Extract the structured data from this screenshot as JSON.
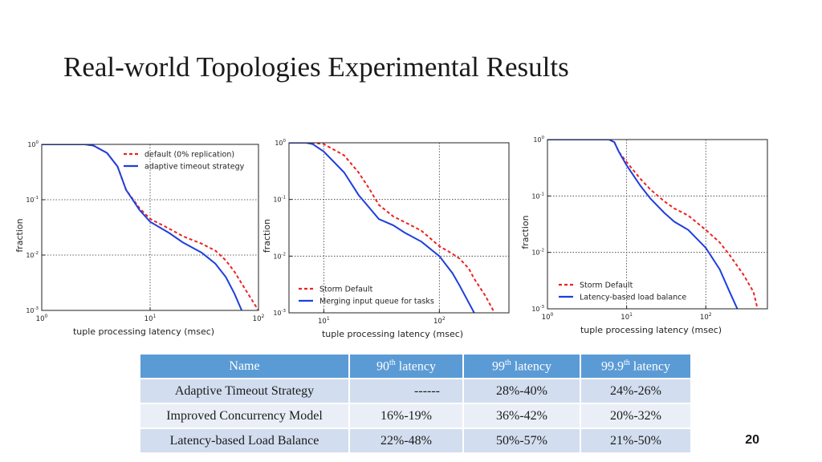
{
  "slide": {
    "title": "Real-world  Topologies Experimental Results",
    "page_number": "20"
  },
  "chart_data": [
    {
      "type": "line",
      "xscale": "log",
      "yscale": "log",
      "xlim": [
        1,
        100
      ],
      "ylim": [
        0.001,
        1
      ],
      "xlabel": "tuple processing latency (msec)",
      "ylabel": "fraction",
      "xticks": [
        {
          "v": 1,
          "m": "10",
          "e": "0"
        },
        {
          "v": 10,
          "m": "10",
          "e": "1"
        },
        {
          "v": 100,
          "m": "10",
          "e": "2"
        }
      ],
      "yticks": [
        {
          "v": 1,
          "m": "10",
          "e": "0"
        },
        {
          "v": 0.1,
          "m": "10",
          "e": "-1"
        },
        {
          "v": 0.01,
          "m": "10",
          "e": "-2"
        },
        {
          "v": 0.001,
          "m": "10",
          "e": "-3"
        }
      ],
      "grid": true,
      "legend_position": "top-right",
      "series": [
        {
          "name": "default (0% replication)",
          "color": "#ee2222",
          "dash": true,
          "x": [
            1,
            2.5,
            3,
            4,
            5,
            6,
            8,
            10,
            15,
            20,
            30,
            40,
            50,
            60,
            80,
            100
          ],
          "y": [
            1,
            1,
            0.95,
            0.7,
            0.4,
            0.15,
            0.07,
            0.045,
            0.03,
            0.022,
            0.016,
            0.012,
            0.008,
            0.005,
            0.002,
            0.001
          ]
        },
        {
          "name": "adaptive timeout strategy",
          "color": "#1f3fdd",
          "dash": false,
          "x": [
            1,
            2.5,
            3,
            4,
            5,
            6,
            8,
            10,
            15,
            20,
            30,
            40,
            50,
            60,
            70
          ],
          "y": [
            1,
            1,
            0.95,
            0.7,
            0.4,
            0.15,
            0.065,
            0.04,
            0.025,
            0.017,
            0.011,
            0.007,
            0.004,
            0.002,
            0.001
          ]
        }
      ]
    },
    {
      "type": "line",
      "xscale": "log",
      "yscale": "log",
      "xlim": [
        5,
        400
      ],
      "ylim": [
        0.001,
        1
      ],
      "xlabel": "tuple processing latency (msec)",
      "ylabel": "fraction",
      "xticks": [
        {
          "v": 10,
          "m": "10",
          "e": "1"
        },
        {
          "v": 100,
          "m": "10",
          "e": "2"
        }
      ],
      "yticks": [
        {
          "v": 1,
          "m": "10",
          "e": "0"
        },
        {
          "v": 0.1,
          "m": "10",
          "e": "-1"
        },
        {
          "v": 0.01,
          "m": "10",
          "e": "-2"
        },
        {
          "v": 0.001,
          "m": "10",
          "e": "-3"
        }
      ],
      "grid": true,
      "legend_position": "bottom-left",
      "series": [
        {
          "name": "Storm Default",
          "color": "#ee2222",
          "dash": true,
          "x": [
            5,
            8,
            10,
            15,
            20,
            25,
            30,
            40,
            50,
            70,
            100,
            130,
            150,
            180,
            200,
            250,
            300
          ],
          "y": [
            1,
            1,
            0.95,
            0.6,
            0.3,
            0.15,
            0.08,
            0.05,
            0.04,
            0.028,
            0.015,
            0.011,
            0.009,
            0.006,
            0.004,
            0.002,
            0.001
          ]
        },
        {
          "name": "Merging input queue for tasks",
          "color": "#1f3fdd",
          "dash": false,
          "x": [
            5,
            7,
            8,
            10,
            15,
            20,
            25,
            30,
            40,
            50,
            70,
            100,
            130,
            150,
            200
          ],
          "y": [
            1,
            1,
            0.95,
            0.7,
            0.3,
            0.12,
            0.07,
            0.045,
            0.035,
            0.026,
            0.018,
            0.01,
            0.005,
            0.003,
            0.001
          ]
        }
      ]
    },
    {
      "type": "line",
      "xscale": "log",
      "yscale": "log",
      "xlim": [
        1,
        600
      ],
      "ylim": [
        0.001,
        1
      ],
      "xlabel": "tuple processing latency (msec)",
      "ylabel": "fraction",
      "xticks": [
        {
          "v": 1,
          "m": "10",
          "e": "0"
        },
        {
          "v": 10,
          "m": "10",
          "e": "1"
        },
        {
          "v": 100,
          "m": "10",
          "e": "2"
        }
      ],
      "yticks": [
        {
          "v": 1,
          "m": "10",
          "e": "0"
        },
        {
          "v": 0.1,
          "m": "10",
          "e": "-1"
        },
        {
          "v": 0.01,
          "m": "10",
          "e": "-2"
        },
        {
          "v": 0.001,
          "m": "10",
          "e": "-3"
        }
      ],
      "grid": true,
      "legend_position": "bottom-right",
      "series": [
        {
          "name": "Storm Default",
          "color": "#ee2222",
          "dash": true,
          "x": [
            1,
            6,
            7,
            8,
            10,
            15,
            20,
            30,
            40,
            60,
            100,
            150,
            200,
            300,
            400,
            450
          ],
          "y": [
            1,
            1,
            0.9,
            0.6,
            0.4,
            0.2,
            0.13,
            0.08,
            0.06,
            0.045,
            0.025,
            0.015,
            0.009,
            0.004,
            0.002,
            0.001
          ]
        },
        {
          "name": "Latency-based load balance",
          "color": "#1f3fdd",
          "dash": false,
          "x": [
            1,
            6,
            7,
            8,
            10,
            15,
            20,
            30,
            40,
            60,
            100,
            150,
            200,
            250
          ],
          "y": [
            1,
            1,
            0.9,
            0.6,
            0.35,
            0.15,
            0.09,
            0.05,
            0.035,
            0.025,
            0.012,
            0.005,
            0.002,
            0.001
          ]
        }
      ]
    }
  ],
  "table": {
    "headers": [
      {
        "base": "Name",
        "sup": "",
        "rest": ""
      },
      {
        "base": "90",
        "sup": "th",
        "rest": "latency"
      },
      {
        "base": "99",
        "sup": "th",
        "rest": "latency"
      },
      {
        "base": "99.9",
        "sup": "th",
        "rest": "latency"
      }
    ],
    "rows": [
      [
        "Adaptive Timeout Strategy",
        "------",
        "28%-40%",
        "24%-26%"
      ],
      [
        "Improved Concurrency Model",
        "16%-19%",
        "36%-42%",
        "20%-32%"
      ],
      [
        "Latency-based Load Balance",
        "22%-48%",
        "50%-57%",
        "21%-50%"
      ]
    ]
  }
}
